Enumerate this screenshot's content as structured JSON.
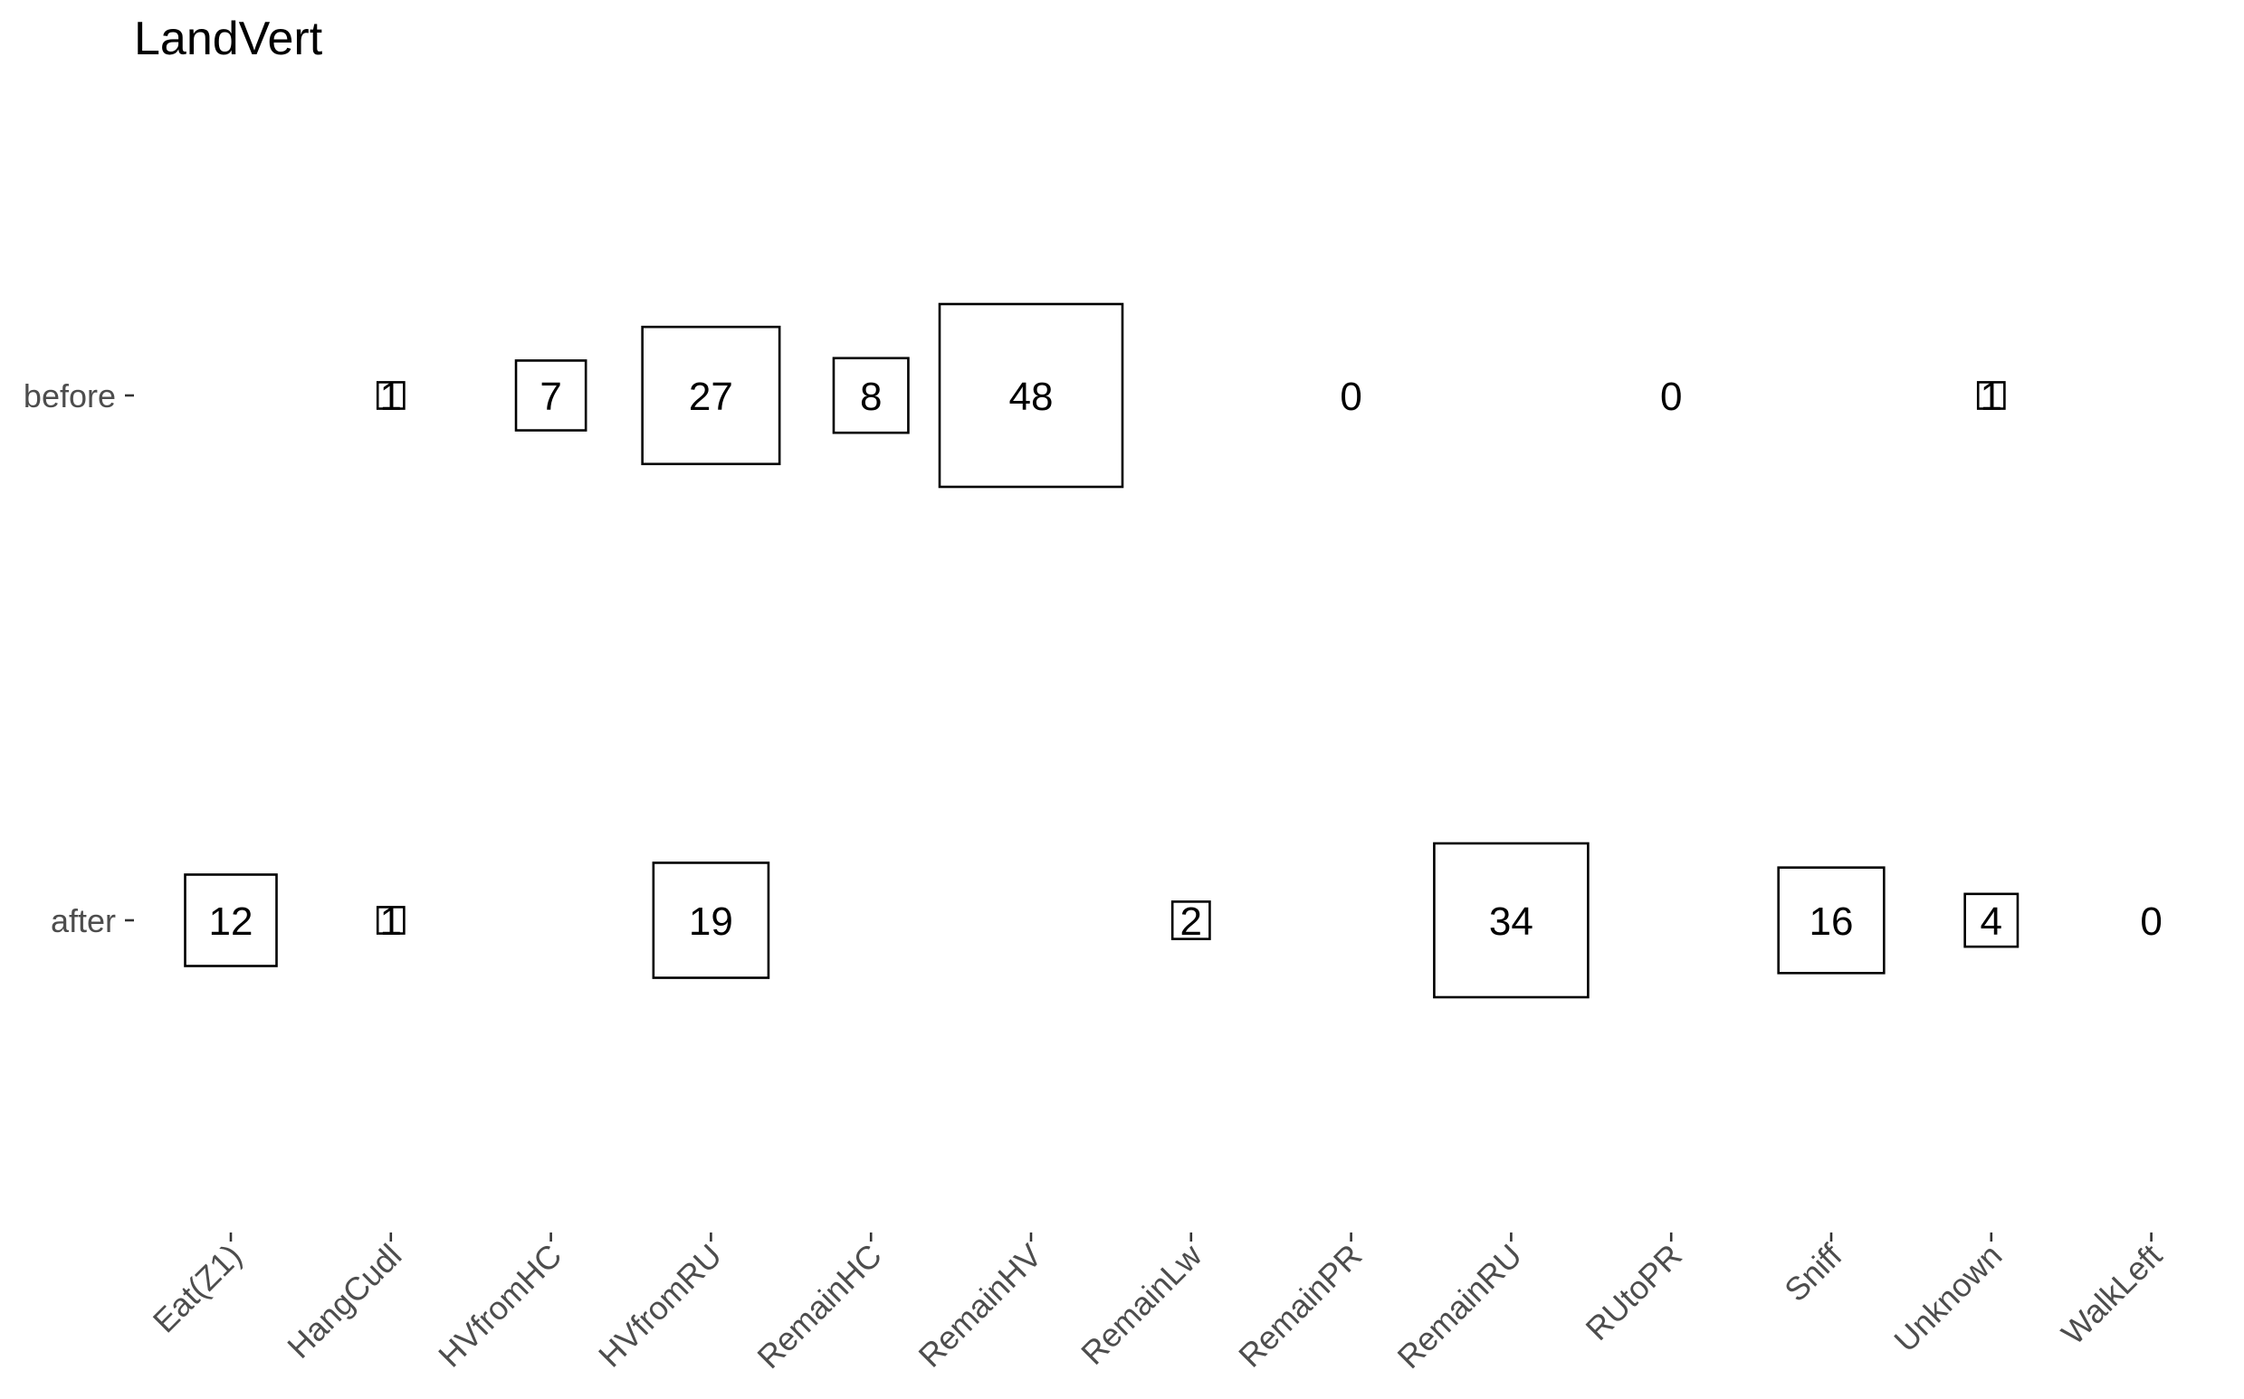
{
  "chart_data": {
    "type": "heatmap",
    "title": "LandVert",
    "xlabel": "",
    "ylabel": "",
    "categories": [
      "Eat(Z1)",
      "HangCudl",
      "HVfromHC",
      "HVfromRU",
      "RemainHC",
      "RemainHV",
      "RemainLw",
      "RemainPR",
      "RemainRU",
      "RUtoPR",
      "Sniff",
      "Unknown",
      "WalkLeft"
    ],
    "rows": [
      "before",
      "after"
    ],
    "series": [
      {
        "name": "before",
        "values": [
          null,
          1,
          7,
          27,
          8,
          48,
          null,
          0,
          null,
          0,
          null,
          1,
          null
        ]
      },
      {
        "name": "after",
        "values": [
          12,
          1,
          null,
          19,
          null,
          null,
          2,
          null,
          34,
          null,
          16,
          4,
          0
        ]
      }
    ],
    "max_value": 48,
    "grid": false,
    "legend": "none"
  }
}
